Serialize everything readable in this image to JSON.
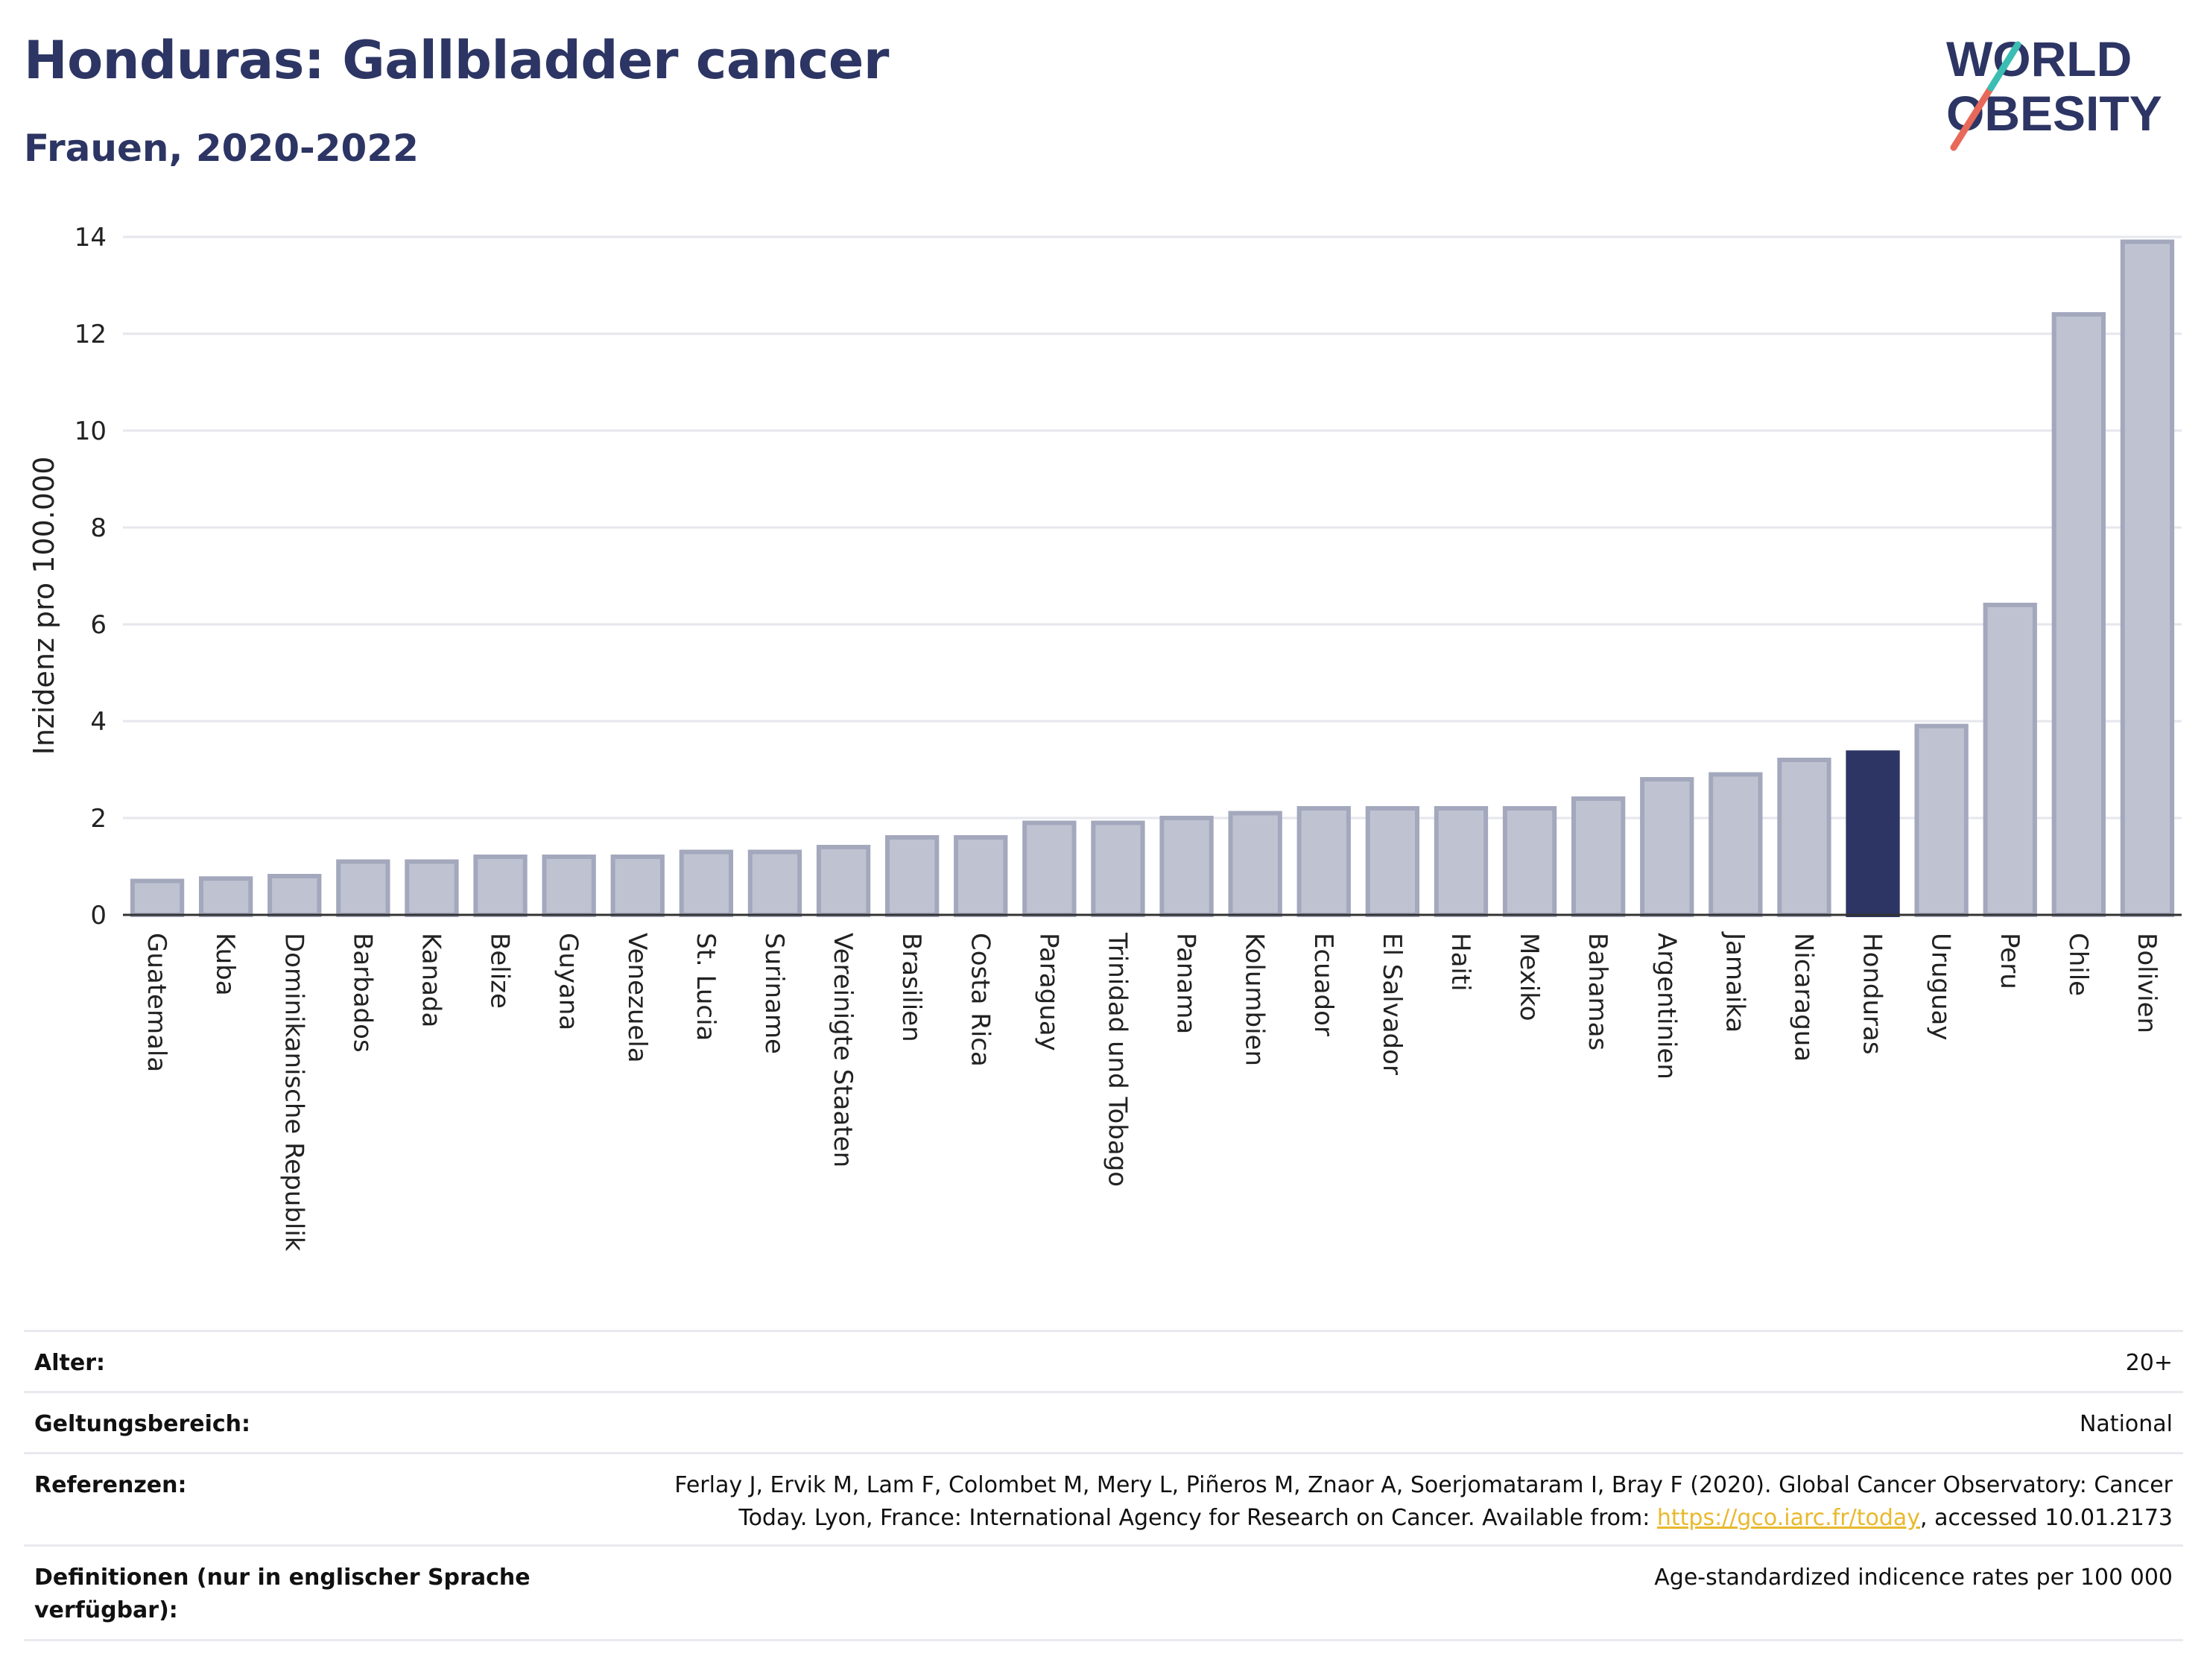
{
  "header": {
    "title": "Honduras: Gallbladder cancer",
    "subtitle": "Frauen, 2020-2022",
    "logo_line1": "WORLD",
    "logo_line2": "OBESITY"
  },
  "chart_data": {
    "type": "bar",
    "ylabel": "Inzidenz pro 100.000",
    "ylim": [
      0,
      14
    ],
    "yticks": [
      0,
      2,
      4,
      6,
      8,
      10,
      12,
      14
    ],
    "grid": true,
    "categories": [
      "Guatemala",
      "Kuba",
      "Dominikanische Republik",
      "Barbados",
      "Kanada",
      "Belize",
      "Guyana",
      "Venezuela",
      "St. Lucia",
      "Suriname",
      "Vereinigte Staaten",
      "Brasilien",
      "Costa Rica",
      "Paraguay",
      "Trinidad und Tobago",
      "Panama",
      "Kolumbien",
      "Ecuador",
      "El Salvador",
      "Haiti",
      "Mexiko",
      "Bahamas",
      "Argentinien",
      "Jamaika",
      "Nicaragua",
      "Honduras",
      "Uruguay",
      "Peru",
      "Chile",
      "Bolivien"
    ],
    "values": [
      0.7,
      0.75,
      0.8,
      1.1,
      1.1,
      1.2,
      1.2,
      1.2,
      1.3,
      1.3,
      1.4,
      1.6,
      1.6,
      1.9,
      1.9,
      2.0,
      2.1,
      2.2,
      2.2,
      2.2,
      2.2,
      2.4,
      2.8,
      2.9,
      3.2,
      3.35,
      3.9,
      6.4,
      12.4,
      13.9
    ],
    "highlight": "Honduras",
    "colors": {
      "bar": "#bfc3d1",
      "bar_border": "#a3a8bd",
      "highlight": "#2c3563",
      "grid": "#e6e6ee",
      "axis": "#333333"
    }
  },
  "meta": {
    "age_label": "Alter:",
    "age_value": "20+",
    "scope_label": "Geltungsbereich:",
    "scope_value": "National",
    "ref_label": "Referenzen:",
    "ref_line1": "Ferlay J, Ervik M, Lam F, Colombet M, Mery L, Piñeros M, Znaor A, Soerjomataram I, Bray F (2020). Global Cancer Observatory: Cancer",
    "ref_line2_pre": "Today. Lyon, France: International Agency for Research on Cancer. Available from: ",
    "ref_link": "https://gco.iarc.fr/today",
    "ref_line2_post": ", accessed 10.01.2173",
    "def_label_line1": "Definitionen (nur in englischer Sprache",
    "def_label_line2": "verfügbar):",
    "def_value": "Age-standardized indicence rates per 100 000"
  }
}
